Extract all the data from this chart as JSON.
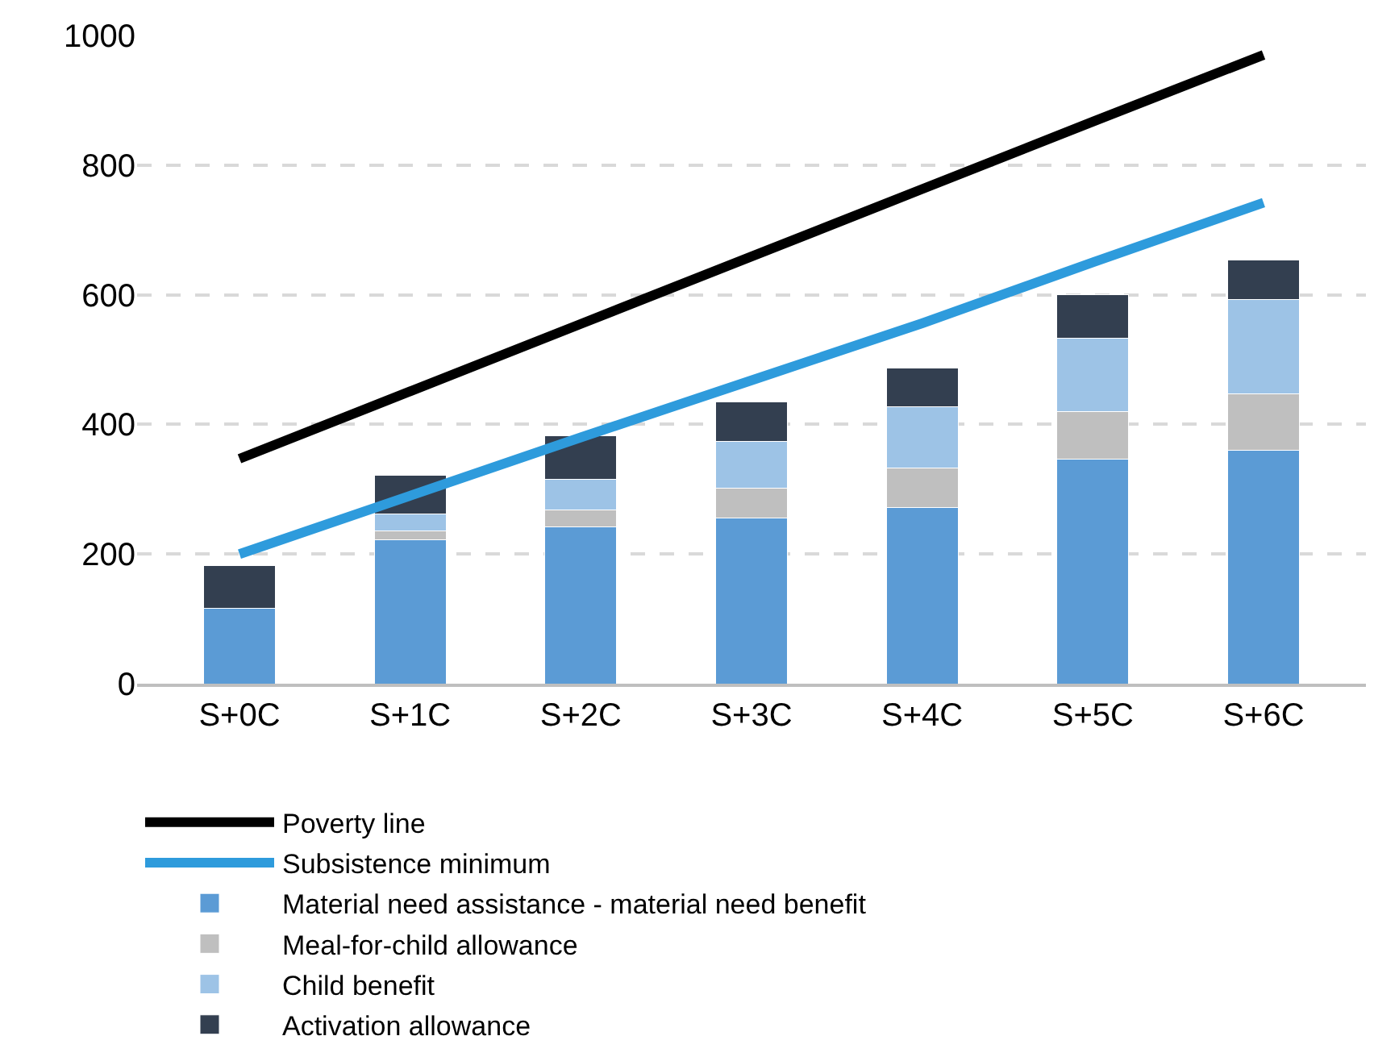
{
  "chart_data": {
    "type": "bar",
    "stacked": true,
    "categories": [
      "S+0C",
      "S+1C",
      "S+2C",
      "S+3C",
      "S+4C",
      "S+5C",
      "S+6C"
    ],
    "ylim": [
      0,
      1000
    ],
    "yticks": [
      0,
      200,
      400,
      600,
      800,
      1000
    ],
    "grid": "y",
    "legend": "bottom",
    "series": [
      {
        "name": "Material need assistance - material need benefit",
        "color": "#5b9bd5",
        "values": [
          116,
          222,
          242,
          255,
          272,
          346,
          360
        ]
      },
      {
        "name": "Meal-for-child allowance",
        "color": "#bfbfbf",
        "values": [
          0,
          14,
          26,
          47,
          61,
          74,
          87
        ]
      },
      {
        "name": "Child benefit",
        "color": "#9dc3e6",
        "values": [
          0,
          26,
          47,
          72,
          94,
          113,
          146
        ]
      },
      {
        "name": "Activation allowance",
        "color": "#333f50",
        "values": [
          66,
          60,
          67,
          61,
          60,
          67,
          60
        ]
      },
      {
        "name": "Subsistence minimum",
        "type": "line",
        "color": "#2e9bdc",
        "values": [
          200,
          290,
          380,
          468,
          556,
          650,
          742
        ]
      },
      {
        "name": "Poverty line",
        "type": "line",
        "color": "#000000",
        "values": [
          347,
          451,
          555,
          659,
          763,
          867,
          970
        ]
      }
    ]
  }
}
